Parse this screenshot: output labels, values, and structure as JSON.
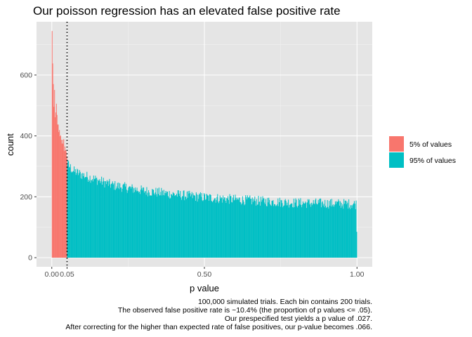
{
  "chart_data": {
    "type": "bar",
    "title": "Our poisson regression has an elevated false positive rate",
    "xlabel": "p value",
    "ylabel": "count",
    "xlim": [
      -0.05,
      1.05
    ],
    "ylim": [
      -30,
      775
    ],
    "x_ticks": [
      0.0,
      0.05,
      0.5,
      1.0
    ],
    "x_tick_labels": [
      "0.00",
      "0.05",
      "0.50",
      "1.00"
    ],
    "y_ticks": [
      0,
      200,
      400,
      600
    ],
    "y_tick_labels": [
      "0",
      "200",
      "400",
      "600"
    ],
    "grid": true,
    "legend_position": "right",
    "bin_count": 500,
    "bin_width": 0.002,
    "vline": 0.05,
    "vline_style": "dotted",
    "colors": {
      "panel": "#e5e5e5",
      "grid_major": "#ffffff",
      "grid_minor": "#f2f2f2",
      "vline": "#000000"
    },
    "series": [
      {
        "name": "5% of values",
        "color": "#f8766d",
        "x_range": [
          0.0,
          0.05
        ],
        "values": [
          740,
          640,
          560,
          470,
          560,
          430,
          505,
          490,
          450,
          415,
          440,
          400,
          420,
          395,
          405,
          380,
          390,
          355,
          385,
          360,
          370,
          345,
          355,
          335,
          340
        ]
      },
      {
        "name": "95% of values",
        "color": "#00bfc4",
        "x_range": [
          0.05,
          1.0
        ],
        "profile": [
          {
            "x": 0.05,
            "count": 310
          },
          {
            "x": 0.07,
            "count": 285
          },
          {
            "x": 0.1,
            "count": 272
          },
          {
            "x": 0.15,
            "count": 255
          },
          {
            "x": 0.2,
            "count": 238
          },
          {
            "x": 0.3,
            "count": 220
          },
          {
            "x": 0.4,
            "count": 208
          },
          {
            "x": 0.5,
            "count": 198
          },
          {
            "x": 0.6,
            "count": 191
          },
          {
            "x": 0.7,
            "count": 185
          },
          {
            "x": 0.8,
            "count": 180
          },
          {
            "x": 0.9,
            "count": 178
          },
          {
            "x": 0.998,
            "count": 176
          }
        ],
        "last_bin": 85
      }
    ]
  },
  "caption": [
    "100,000 simulated trials. Each bin contains 200 trials.",
    "The observed false positive rate is ~10.4% (the proportion of p values <= .05).",
    "Our prespecified test yields a p value of .027.",
    "After correcting for the higher than expected rate of false positives, our p-value becomes .066."
  ]
}
